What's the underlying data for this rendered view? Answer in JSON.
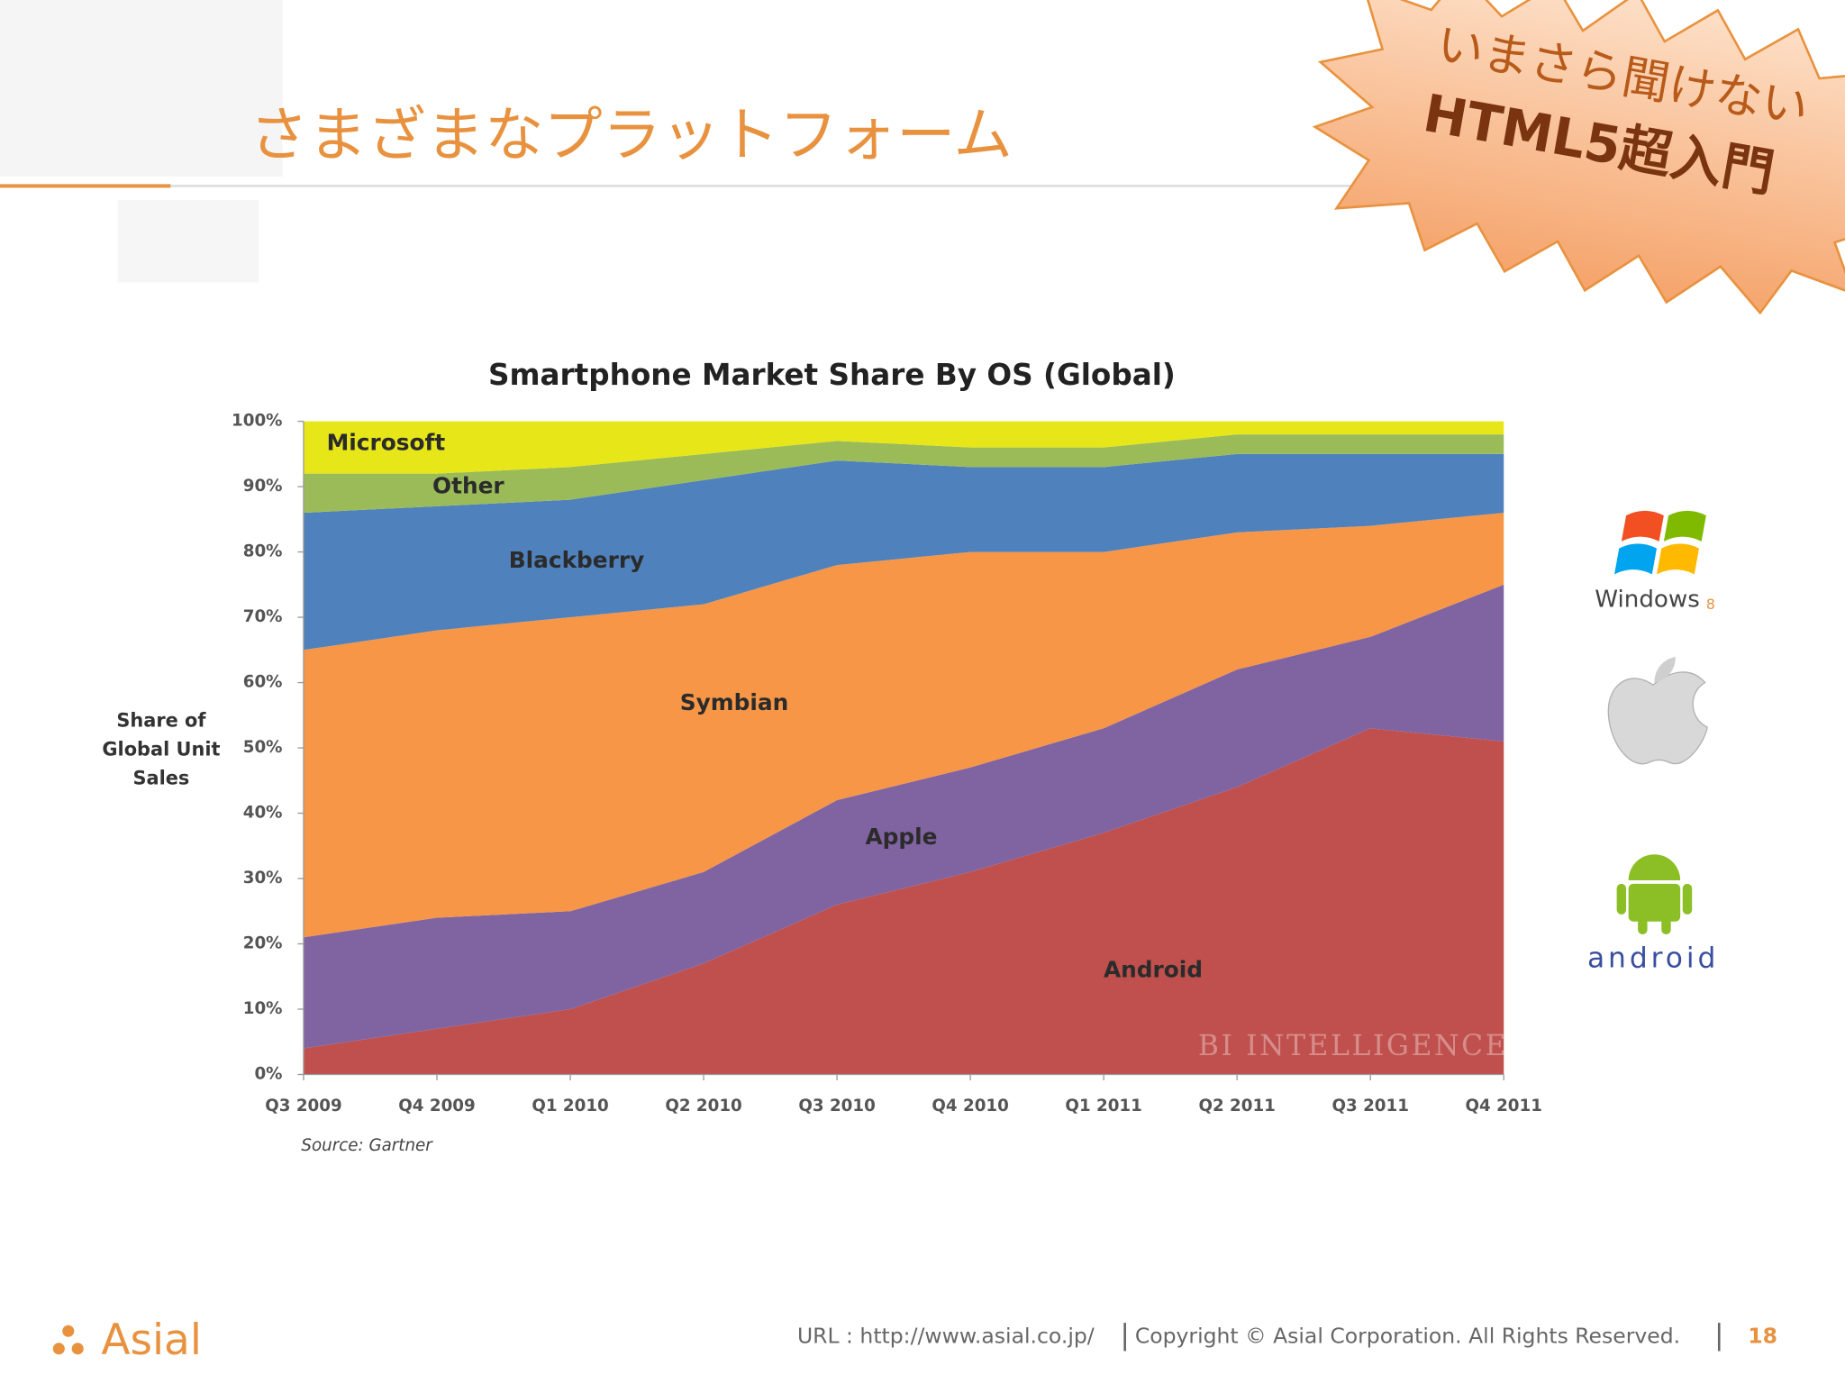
{
  "slide": {
    "title": "さまざまなプラットフォーム",
    "badge_line1": "いまさら聞けない",
    "badge_line2": "HTML5超入門",
    "windows_logo": "Windows",
    "windows_version": "8",
    "android_logo": "android",
    "company_logo": "Asial",
    "url": "URL : http://www.asial.co.jp/",
    "copyright": "Copyright © Asial Corporation. All Rights Reserved.",
    "page_number": "18"
  },
  "chart_data": {
    "type": "stacked_area",
    "title": "Smartphone Market Share By OS (Global)",
    "ylabel": [
      "Share of",
      "Global Unit",
      "Sales"
    ],
    "source": "Source: Gartner",
    "watermark": "BI INTELLIGENCE",
    "categories": [
      "Q3 2009",
      "Q4 2009",
      "Q1 2010",
      "Q2 2010",
      "Q3 2010",
      "Q4 2010",
      "Q1 2011",
      "Q2 2011",
      "Q3 2011",
      "Q4 2011"
    ],
    "series": [
      {
        "name": "Android",
        "color": "#c0504d",
        "values": [
          4,
          7,
          10,
          17,
          26,
          31,
          37,
          44,
          53,
          51
        ]
      },
      {
        "name": "Apple",
        "color": "#8064a2",
        "values": [
          17,
          17,
          15,
          14,
          16,
          16,
          16,
          18,
          14,
          24
        ]
      },
      {
        "name": "Symbian",
        "color": "#f79646",
        "values": [
          44,
          44,
          45,
          41,
          36,
          33,
          27,
          21,
          17,
          11
        ]
      },
      {
        "name": "Blackberry",
        "color": "#4f81bd",
        "values": [
          21,
          19,
          18,
          19,
          16,
          13,
          13,
          12,
          11,
          9
        ]
      },
      {
        "name": "Other",
        "color": "#9bbb59",
        "values": [
          6,
          5,
          5,
          4,
          3,
          3,
          3,
          3,
          3,
          3
        ]
      },
      {
        "name": "Microsoft",
        "color": "#e6e619",
        "values": [
          8,
          8,
          7,
          5,
          3,
          4,
          4,
          2,
          2,
          2
        ]
      }
    ],
    "ylim": [
      0,
      100
    ],
    "yticks": [
      {
        "value": 0,
        "label": "0%"
      },
      {
        "value": 10,
        "label": "10%"
      },
      {
        "value": 20,
        "label": "20%"
      },
      {
        "value": 30,
        "label": "30%"
      },
      {
        "value": 40,
        "label": "40%"
      },
      {
        "value": 50,
        "label": "50%"
      },
      {
        "value": 60,
        "label": "60%"
      },
      {
        "value": 70,
        "label": "70%"
      },
      {
        "value": 80,
        "label": "80%"
      },
      {
        "value": 90,
        "label": "90%"
      },
      {
        "value": 100,
        "label": "100%"
      }
    ]
  }
}
